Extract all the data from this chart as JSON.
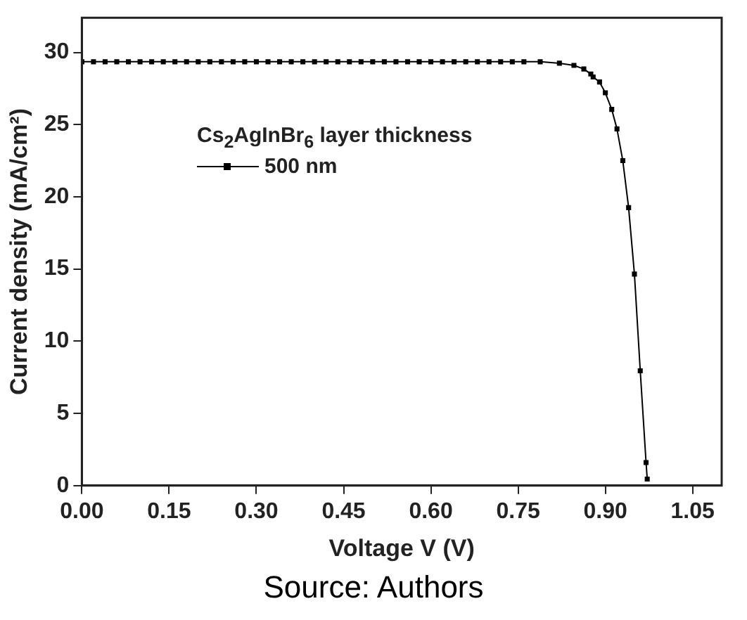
{
  "chart_data": {
    "type": "line",
    "xlabel": "Voltage V (V)",
    "ylabel": "Current density (mA/cm²)",
    "legend_title": "Cs$_{2}$AgInBr$_{6}$ layer thickness",
    "annotations": [
      "Source: Authors"
    ],
    "x": [
      0,
      0.02,
      0.04,
      0.06,
      0.08,
      0.1,
      0.12,
      0.14,
      0.16,
      0.18,
      0.2,
      0.22,
      0.24,
      0.26,
      0.28,
      0.3,
      0.32,
      0.34,
      0.36,
      0.38,
      0.4,
      0.42,
      0.44,
      0.46,
      0.48,
      0.5,
      0.52,
      0.54,
      0.56,
      0.58,
      0.6,
      0.62,
      0.64,
      0.66,
      0.68,
      0.7,
      0.72,
      0.74,
      0.76,
      0.788,
      0.821,
      0.846,
      0.863,
      0.875,
      0.879,
      0.89,
      0.9,
      0.911,
      0.92,
      0.93,
      0.94,
      0.95,
      0.96,
      0.97,
      0.972
    ],
    "series": [
      {
        "name": "500 nm",
        "color": "#000000",
        "values": [
          29.35,
          29.35,
          29.35,
          29.35,
          29.35,
          29.35,
          29.35,
          29.35,
          29.35,
          29.35,
          29.35,
          29.35,
          29.35,
          29.35,
          29.35,
          29.35,
          29.35,
          29.35,
          29.35,
          29.35,
          29.35,
          29.35,
          29.35,
          29.35,
          29.35,
          29.35,
          29.35,
          29.35,
          29.35,
          29.35,
          29.35,
          29.35,
          29.35,
          29.35,
          29.35,
          29.35,
          29.35,
          29.35,
          29.35,
          29.35,
          29.25,
          29.1,
          28.85,
          28.5,
          28.3,
          27.95,
          27.2,
          26.05,
          24.7,
          22.5,
          19.25,
          14.65,
          7.95,
          1.6,
          0.45
        ]
      }
    ],
    "xlim": [
      0,
      1.1
    ],
    "xticks": [
      {
        "value": 0,
        "label": "0.00"
      },
      {
        "value": 0.15,
        "label": "0.15"
      },
      {
        "value": 0.3,
        "label": "0.30"
      },
      {
        "value": 0.45,
        "label": "0.45"
      },
      {
        "value": 0.6,
        "label": "0.60"
      },
      {
        "value": 0.75,
        "label": "0.75"
      },
      {
        "value": 0.9,
        "label": "0.90"
      },
      {
        "value": 1.05,
        "label": "1.05"
      }
    ],
    "ylim": [
      0,
      32.4
    ],
    "yticks": [
      0,
      5,
      10,
      15,
      20,
      25,
      30
    ],
    "legend": "top left",
    "marker": "square",
    "line_style": "solid",
    "grid": false
  }
}
